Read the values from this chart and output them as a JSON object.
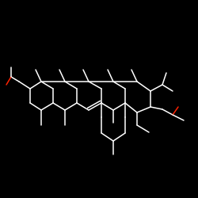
{
  "bg_color": "#000000",
  "bond_color": "#ffffff",
  "oxygen_color": "#ff2200",
  "fig_size": [
    2.5,
    2.5
  ],
  "dpi": 100
}
